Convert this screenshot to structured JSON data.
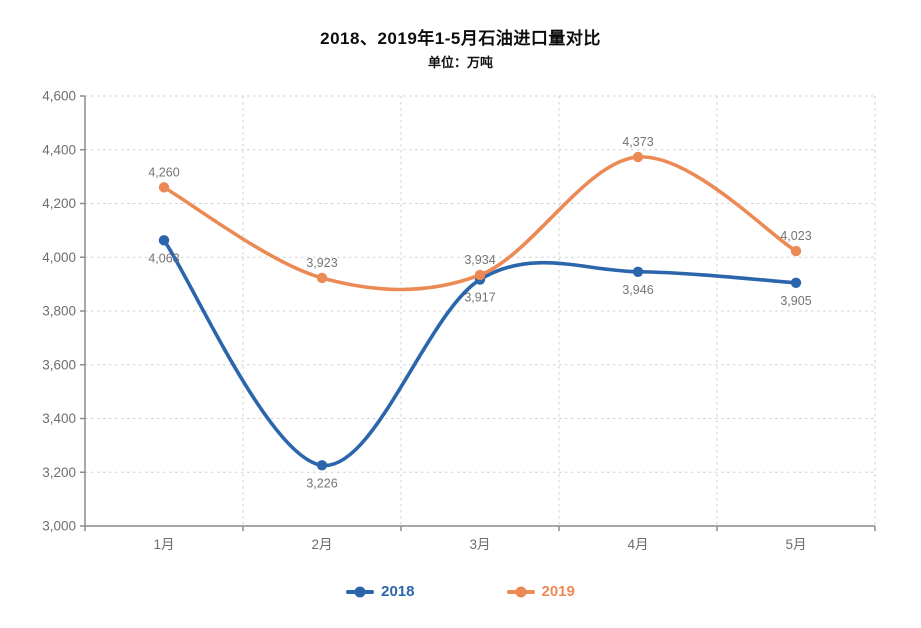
{
  "chart_data": {
    "type": "line",
    "title": "2018、2019年1-5月石油进口量对比",
    "subtitle": "单位：万吨",
    "categories": [
      "1月",
      "2月",
      "3月",
      "4月",
      "5月"
    ],
    "series": [
      {
        "name": "2018",
        "color": "#2b65ac",
        "values": [
          4063,
          3226,
          3917,
          3946,
          3905
        ],
        "label_position": "below"
      },
      {
        "name": "2019",
        "color": "#ec8a56",
        "values": [
          4260,
          3923,
          3934,
          4373,
          4023
        ],
        "label_position": "above"
      }
    ],
    "ylim": [
      3000,
      4600
    ],
    "ytick_step": 200,
    "xlabel": "",
    "ylabel": "",
    "grid": "dashed",
    "legend_position": "bottom",
    "line_smooth": true,
    "axis_color": "#8c8c8c",
    "grid_color": "#cfcfcf",
    "data_label_color": "#757575",
    "tick_label_color": "#6e6e6e"
  }
}
